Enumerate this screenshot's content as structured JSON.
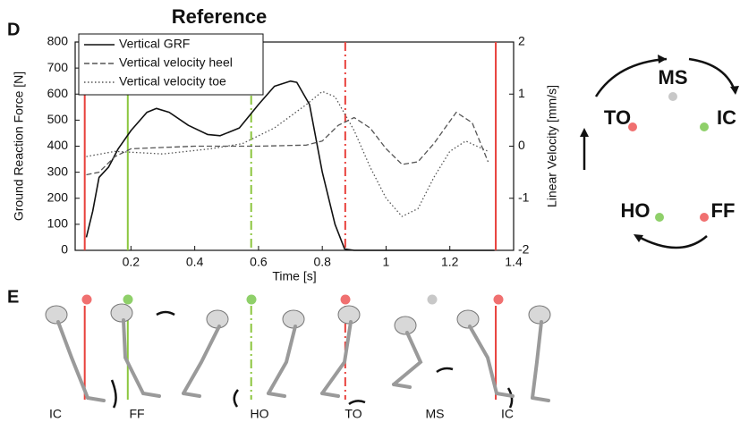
{
  "chart_data": {
    "type": "line",
    "title": "Reference",
    "xlabel": "Time [s]",
    "ylabel": "Ground Reaction Force [N]",
    "y2label": "Linear Velocity [mm/s]",
    "xlim": [
      0.025,
      1.4
    ],
    "xticks": [
      0.2,
      0.4,
      0.6,
      0.8,
      1,
      1.2,
      1.4
    ],
    "ylim": [
      0,
      800
    ],
    "yticks": [
      0,
      100,
      200,
      300,
      400,
      500,
      600,
      700,
      800
    ],
    "y2lim": [
      -2,
      2
    ],
    "y2ticks": [
      -2,
      -1,
      0,
      1,
      2
    ],
    "legend": "upper left",
    "series": [
      {
        "name": "Vertical GRF",
        "color": "#111111",
        "style": "solid",
        "x": [
          0.06,
          0.08,
          0.1,
          0.13,
          0.16,
          0.2,
          0.25,
          0.28,
          0.32,
          0.38,
          0.44,
          0.48,
          0.54,
          0.6,
          0.65,
          0.7,
          0.72,
          0.76,
          0.8,
          0.84,
          0.87,
          0.9,
          1.0,
          1.2,
          1.34
        ],
        "values": [
          50,
          150,
          280,
          320,
          390,
          460,
          530,
          545,
          530,
          480,
          445,
          440,
          470,
          560,
          630,
          650,
          645,
          560,
          300,
          100,
          5,
          0,
          0,
          0,
          0
        ]
      },
      {
        "name": "Vertical velocity heel",
        "color": "#555555",
        "style": "dashed",
        "axis": "y2",
        "x": [
          0.06,
          0.1,
          0.15,
          0.2,
          0.4,
          0.6,
          0.75,
          0.8,
          0.85,
          0.9,
          0.95,
          1.0,
          1.05,
          1.1,
          1.15,
          1.22,
          1.27,
          1.32
        ],
        "values": [
          -0.55,
          -0.5,
          -0.2,
          -0.05,
          0,
          0,
          0.02,
          0.1,
          0.4,
          0.55,
          0.35,
          -0.05,
          -0.35,
          -0.3,
          0.05,
          0.65,
          0.45,
          -0.3
        ]
      },
      {
        "name": "Vertical velocity toe",
        "color": "#555555",
        "style": "dotted",
        "axis": "y2",
        "x": [
          0.06,
          0.15,
          0.3,
          0.45,
          0.55,
          0.65,
          0.75,
          0.8,
          0.84,
          0.9,
          0.95,
          1.0,
          1.05,
          1.1,
          1.15,
          1.2,
          1.25,
          1.32
        ],
        "values": [
          -0.2,
          -0.1,
          -0.15,
          -0.05,
          0.05,
          0.35,
          0.8,
          1.05,
          0.95,
          0.3,
          -0.4,
          -1.0,
          -1.35,
          -1.2,
          -0.6,
          -0.1,
          0.1,
          -0.1
        ]
      }
    ],
    "events": [
      {
        "x": 0.055,
        "color": "#e8413c",
        "style": "solid"
      },
      {
        "x": 0.19,
        "color": "#8cc63f",
        "style": "solid"
      },
      {
        "x": 0.577,
        "color": "#8cc63f",
        "style": "dashdot"
      },
      {
        "x": 0.872,
        "color": "#e8413c",
        "style": "dashdot"
      },
      {
        "x": 1.344,
        "color": "#e8413c",
        "style": "solid"
      }
    ]
  },
  "panel_labels": [
    "D",
    "E"
  ],
  "phase_cycle": {
    "nodes": [
      {
        "label": "MS",
        "color": "#c8c8c8"
      },
      {
        "label": "IC",
        "color": "#8fd06a"
      },
      {
        "label": "FF",
        "color": "#f07070"
      },
      {
        "label": "HO",
        "color": "#8fd06a"
      },
      {
        "label": "TO",
        "color": "#f07070"
      }
    ]
  },
  "gait_sequence": {
    "labels": [
      "IC",
      "FF",
      "HO",
      "TO",
      "MS",
      "IC"
    ],
    "dot_colors": [
      "#f07070",
      "#8fd06a",
      "#8fd06a",
      "#f07070",
      "#c8c8c8",
      "#f07070"
    ]
  }
}
